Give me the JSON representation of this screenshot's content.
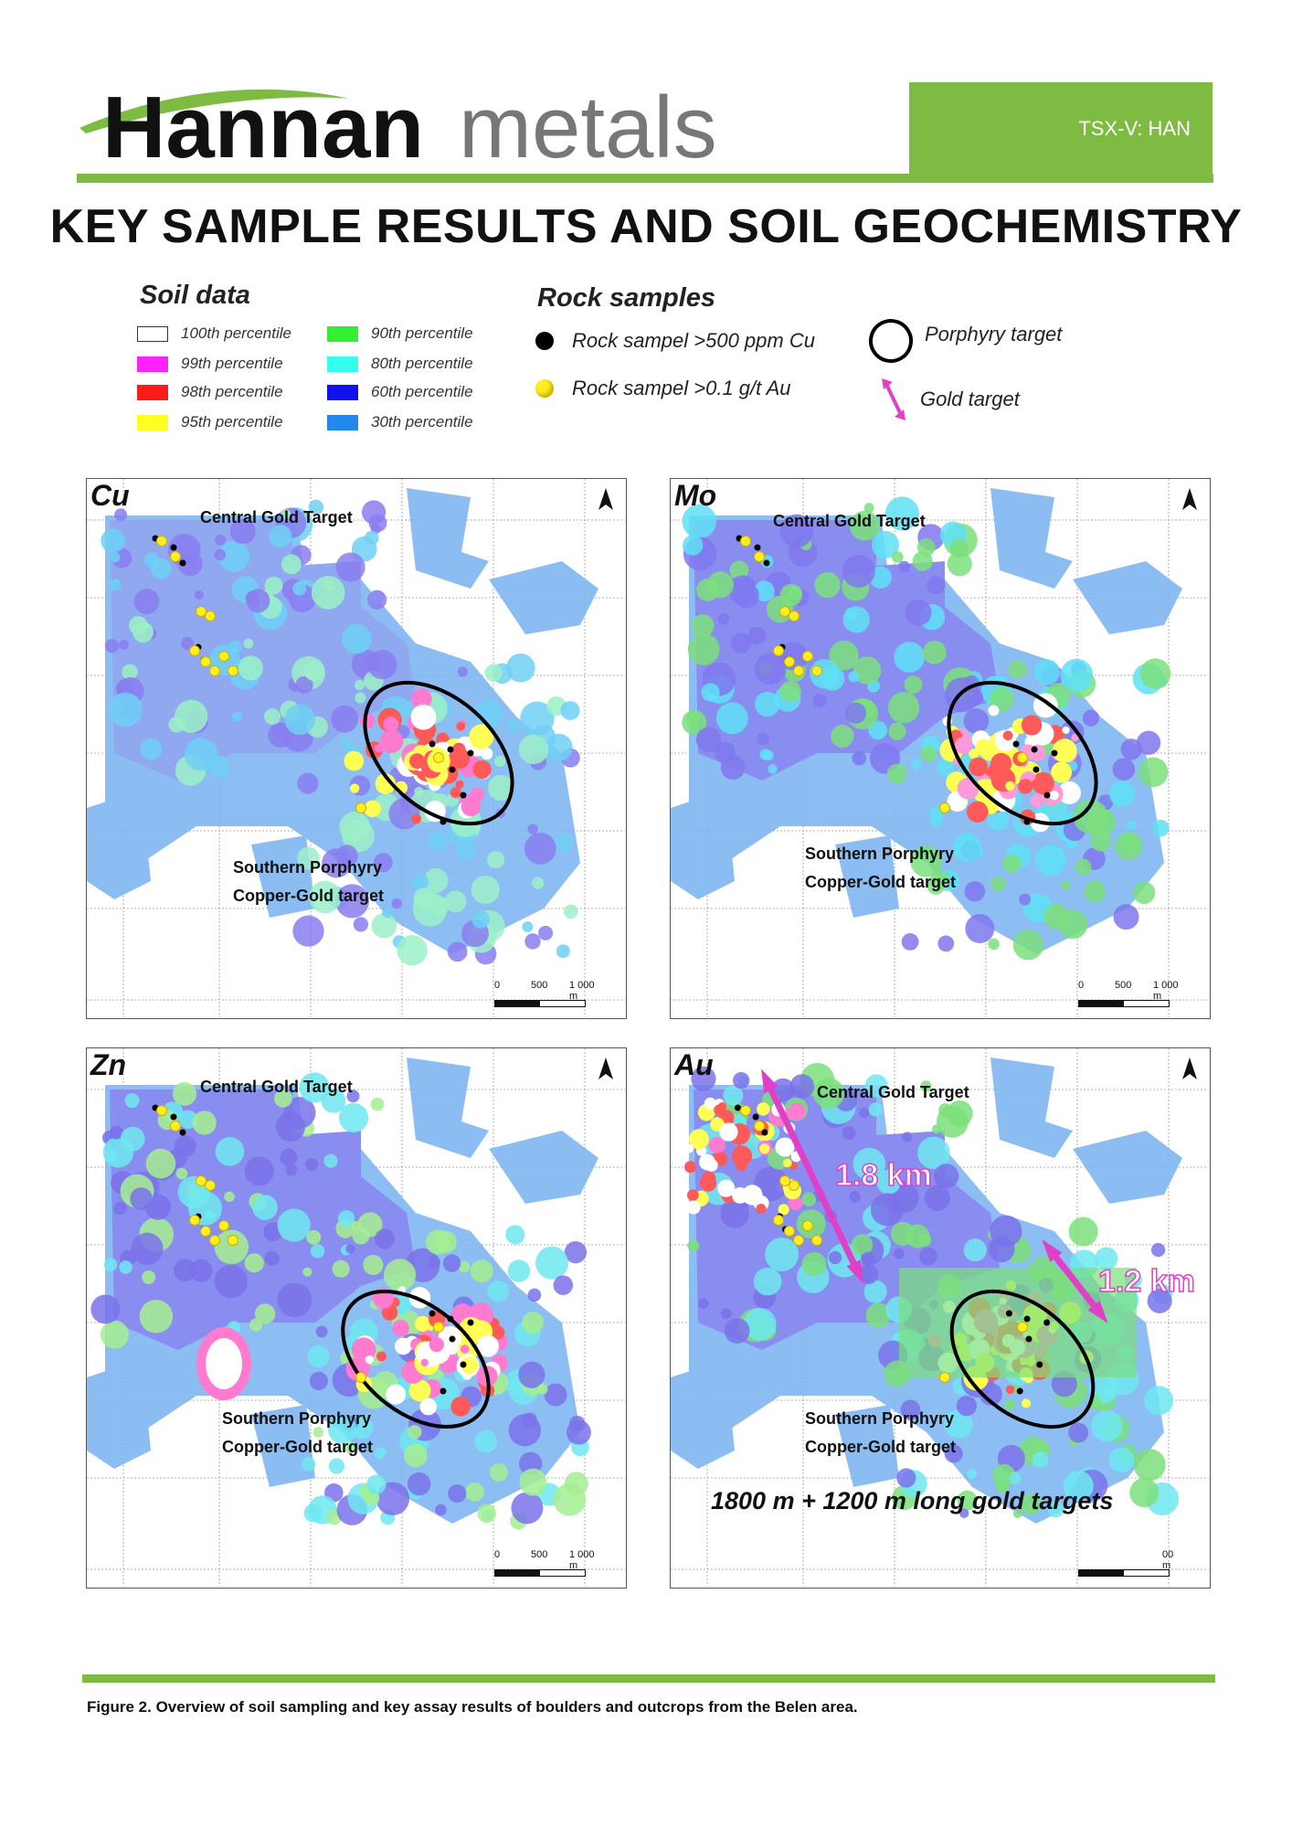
{
  "header": {
    "logo_text_bold": "Hannan",
    "logo_text_light": "metals",
    "ticker": "TSX-V: HAN",
    "title": "KEY SAMPLE RESULTS AND SOIL GEOCHEMISTRY"
  },
  "legend": {
    "soil_heading": "Soil data",
    "soil_items": [
      {
        "label": "100th percentile",
        "color": "#ffffff"
      },
      {
        "label": "99th percentile",
        "color": "#ff22ff"
      },
      {
        "label": "98th percentile",
        "color": "#ff1a1a"
      },
      {
        "label": "95th percentile",
        "color": "#ffff22"
      },
      {
        "label": "90th percentile",
        "color": "#33ee33"
      },
      {
        "label": "80th percentile",
        "color": "#33ffee"
      },
      {
        "label": "60th percentile",
        "color": "#1111ee"
      },
      {
        "label": "30th percentile",
        "color": "#2288ee"
      }
    ],
    "rock_heading": "Rock samples",
    "rock_items": [
      {
        "label": "Rock sampel >500 ppm Cu",
        "color": "#000000"
      },
      {
        "label": "Rock sampel >0.1 g/t Au",
        "color": "#ffee22"
      }
    ],
    "porphyry_label": "Porphyry target",
    "gold_label": "Gold target"
  },
  "panels": [
    {
      "label": "Cu",
      "central": "Central Gold Target",
      "southern_1": "Southern Porphyry",
      "southern_2": "Copper-Gold target",
      "scale": [
        "0",
        "500",
        "1 000 m"
      ]
    },
    {
      "label": "Mo",
      "central": "Central Gold Target",
      "southern_1": "Southern Porphyry",
      "southern_2": "Copper-Gold target",
      "scale": [
        "0",
        "500",
        "1 000 m"
      ]
    },
    {
      "label": "Zn",
      "central": "Central Gold Target",
      "southern_1": "Southern Porphyry",
      "southern_2": "Copper-Gold target",
      "scale": [
        "0",
        "500",
        "1 000 m"
      ]
    },
    {
      "label": "Au",
      "central": "Central Gold Target",
      "southern_1": "Southern Porphyry",
      "southern_2": "Copper-Gold target",
      "scale": [
        "",
        "",
        "00 m"
      ],
      "gold_target_1": "1.8 km",
      "gold_target_2": "1.2 km",
      "note": "1800 m  + 1200 m long gold targets"
    }
  ],
  "caption": "Figure 2. Overview of soil sampling and key assay results of boulders and outcrops from the Belen area."
}
